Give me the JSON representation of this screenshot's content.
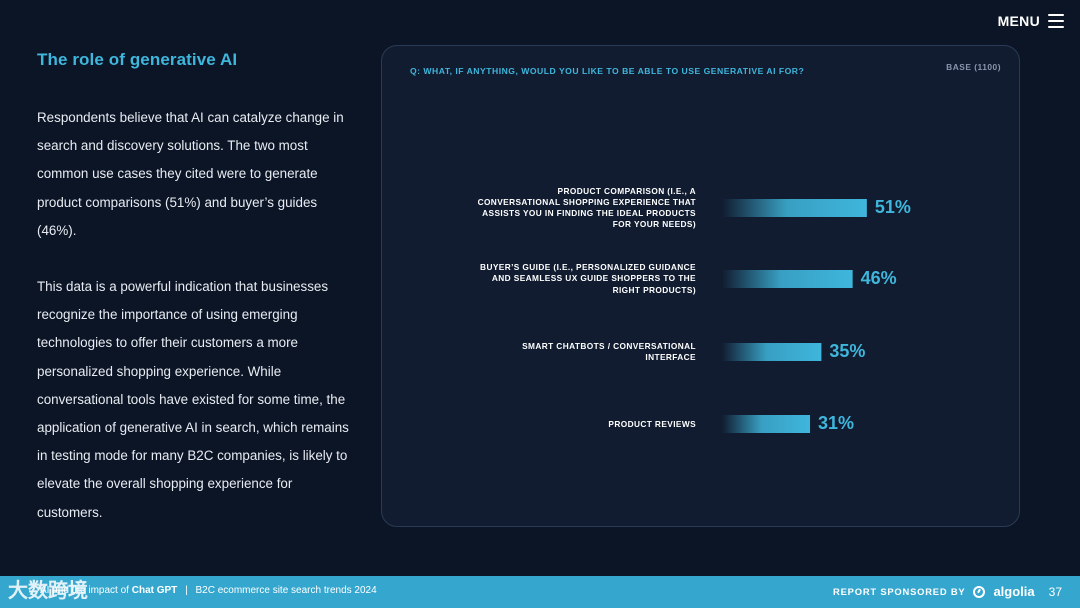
{
  "header": {
    "menu_label": "MENU"
  },
  "left": {
    "title": "The role of generative AI",
    "paragraph1": "Respondents believe that AI can catalyze change in search and discovery solutions. The two most common use cases they cited were to generate product comparisons (51%) and buyer’s guides (46%).",
    "paragraph2": "This data is a powerful indication that businesses recognize the importance of using emerging technologies to offer their customers a more personalized shopping experience. While conversational tools have existed for some time, the application of generative AI in search, which remains in testing mode for many B2C companies, is likely to elevate the overall shopping experience for customers."
  },
  "chart_data": {
    "type": "bar",
    "orientation": "horizontal",
    "question": "Q: WHAT, IF ANYTHING, WOULD YOU LIKE TO BE ABLE TO USE GENERATIVE AI FOR?",
    "base": "BASE (1100)",
    "categories": [
      "PRODUCT COMPARISON (I.E., A CONVERSATIONAL SHOPPING EXPERIENCE THAT ASSISTS YOU IN FINDING THE IDEAL PRODUCTS FOR YOUR NEEDS)",
      "BUYER’S GUIDE (I.E., PERSONALIZED GUIDANCE AND SEAMLESS UX GUIDE SHOPPERS TO THE RIGHT PRODUCTS)",
      "SMART CHATBOTS / CONVERSATIONAL INTERFACE",
      "PRODUCT REVIEWS"
    ],
    "values": [
      51,
      46,
      35,
      31
    ],
    "value_labels": [
      "51%",
      "46%",
      "35%",
      "31%"
    ],
    "unit": "%",
    "bar_color": "#3fb6dc"
  },
  "footer": {
    "watermark": "大数跨境",
    "left_prefix": "AI and the impact of",
    "left_bold": "Chat GPT",
    "separator": "|",
    "left_rest": "B2C ecommerce site search trends 2024",
    "sponsor_label": "REPORT SPONSORED BY",
    "sponsor_name": "algolia",
    "page_number": "37"
  }
}
